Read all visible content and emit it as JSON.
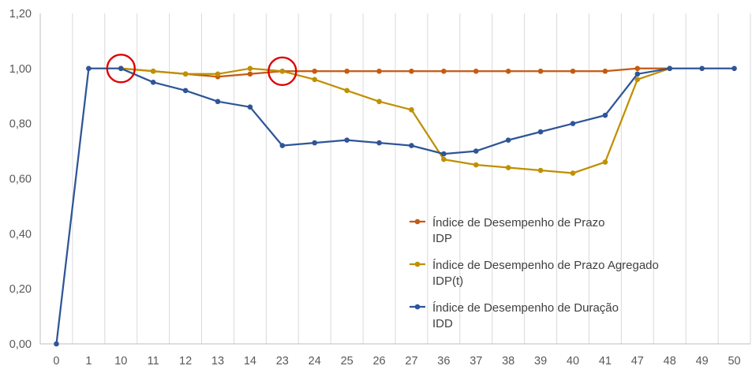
{
  "chart_data": {
    "type": "line",
    "categories": [
      "0",
      "1",
      "10",
      "11",
      "12",
      "13",
      "14",
      "23",
      "24",
      "25",
      "26",
      "27",
      "36",
      "37",
      "38",
      "39",
      "40",
      "41",
      "47",
      "48",
      "49",
      "50"
    ],
    "ylim": [
      0,
      1.2
    ],
    "y_ticks": [
      "0,00",
      "0,20",
      "0,40",
      "0,60",
      "0,80",
      "1,00",
      "1,20"
    ],
    "grid": "vertical gridlines",
    "legend_position": "center-right",
    "series": [
      {
        "name": "Índice de Desempenho de Prazo IDP",
        "name_line1": "Índice de Desempenho de Prazo",
        "name_line2": "IDP",
        "color": "#c55a11",
        "values": [
          null,
          null,
          1.0,
          0.99,
          0.98,
          0.97,
          0.98,
          0.99,
          0.99,
          0.99,
          0.99,
          0.99,
          0.99,
          0.99,
          0.99,
          0.99,
          0.99,
          0.99,
          1.0,
          1.0,
          null,
          null
        ]
      },
      {
        "name": "Índice de Desempenho de Prazo Agregado IDP(t)",
        "name_line1": "Índice de Desempenho de Prazo Agregado",
        "name_line2": "IDP(t)",
        "color": "#bf9000",
        "values": [
          null,
          null,
          1.0,
          0.99,
          0.98,
          0.98,
          1.0,
          0.99,
          0.96,
          0.92,
          0.88,
          0.85,
          0.67,
          0.65,
          0.64,
          0.63,
          0.62,
          0.66,
          0.96,
          1.0,
          null,
          null
        ]
      },
      {
        "name": "Índice de Desempenho de Duração IDD",
        "name_line1": "Índice de Desempenho de Duração",
        "name_line2": "IDD",
        "color": "#2f5597",
        "values": [
          0.0,
          1.0,
          1.0,
          0.95,
          0.92,
          0.88,
          0.86,
          0.72,
          0.73,
          0.74,
          0.73,
          0.72,
          0.69,
          0.7,
          0.74,
          0.77,
          0.8,
          0.83,
          0.98,
          1.0,
          1.0,
          1.0
        ]
      }
    ],
    "annotations": [
      {
        "type": "circle",
        "category": "10",
        "value": 1.0,
        "color": "#e00000"
      },
      {
        "type": "circle",
        "category": "23",
        "value": 0.99,
        "color": "#e00000"
      }
    ]
  }
}
